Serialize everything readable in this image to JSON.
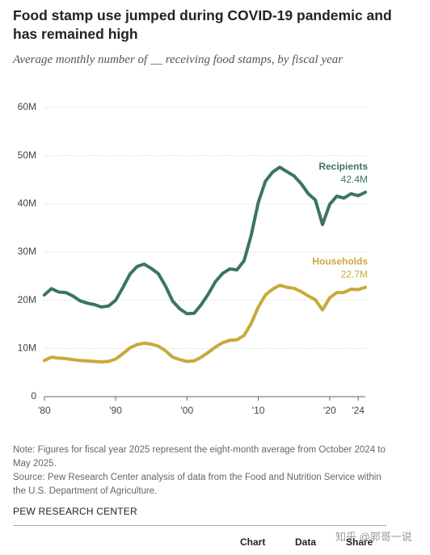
{
  "chart_data": {
    "type": "line",
    "title": "Food stamp use jumped during COVID-19 pandemic and has remained high",
    "subtitle": "Average monthly number of __ receiving food stamps, by fiscal year",
    "x": [
      1980,
      1981,
      1982,
      1983,
      1984,
      1985,
      1986,
      1987,
      1988,
      1989,
      1990,
      1991,
      1992,
      1993,
      1994,
      1995,
      1996,
      1997,
      1998,
      1999,
      2000,
      2001,
      2002,
      2003,
      2004,
      2005,
      2006,
      2007,
      2008,
      2009,
      2010,
      2011,
      2012,
      2013,
      2014,
      2015,
      2016,
      2017,
      2018,
      2019,
      2020,
      2021,
      2022,
      2023,
      2024,
      2025
    ],
    "series": [
      {
        "name": "Recipients",
        "color": "#3b7562",
        "values": [
          21.1,
          22.4,
          21.7,
          21.6,
          20.9,
          19.9,
          19.4,
          19.1,
          18.6,
          18.8,
          20.0,
          22.6,
          25.4,
          27.0,
          27.5,
          26.6,
          25.5,
          22.9,
          19.8,
          18.2,
          17.2,
          17.3,
          19.1,
          21.3,
          23.9,
          25.6,
          26.5,
          26.3,
          28.2,
          33.5,
          40.3,
          44.7,
          46.6,
          47.6,
          46.7,
          45.8,
          44.2,
          42.1,
          40.8,
          35.7,
          39.9,
          41.6,
          41.2,
          42.1,
          41.7,
          42.4
        ],
        "value_labels": [
          null,
          null,
          null,
          null,
          null,
          null,
          null,
          null,
          null,
          null,
          null,
          null,
          null,
          null,
          null,
          null,
          null,
          null,
          null,
          null,
          null,
          null,
          null,
          null,
          null,
          null,
          null,
          null,
          null,
          null,
          null,
          null,
          null,
          null,
          null,
          null,
          null,
          null,
          null,
          null,
          null,
          null,
          null,
          null,
          null,
          "42.4M"
        ]
      },
      {
        "name": "Households",
        "color": "#c9a93c",
        "values": [
          7.5,
          8.2,
          8.0,
          7.9,
          7.7,
          7.5,
          7.4,
          7.3,
          7.2,
          7.3,
          7.8,
          8.9,
          10.1,
          10.8,
          11.1,
          10.9,
          10.5,
          9.5,
          8.2,
          7.7,
          7.3,
          7.4,
          8.2,
          9.2,
          10.3,
          11.2,
          11.7,
          11.8,
          12.7,
          15.2,
          18.6,
          21.1,
          22.3,
          23.1,
          22.7,
          22.5,
          21.8,
          20.9,
          20.1,
          18.0,
          20.5,
          21.6,
          21.6,
          22.3,
          22.2,
          22.7
        ],
        "value_labels": [
          null,
          null,
          null,
          null,
          null,
          null,
          null,
          null,
          null,
          null,
          null,
          null,
          null,
          null,
          null,
          null,
          null,
          null,
          null,
          null,
          null,
          null,
          null,
          null,
          null,
          null,
          null,
          null,
          null,
          null,
          null,
          null,
          null,
          null,
          null,
          null,
          null,
          null,
          null,
          null,
          null,
          null,
          null,
          null,
          null,
          "22.7M"
        ]
      }
    ],
    "xlim": [
      1979,
      2025
    ],
    "xticks": [
      {
        "value": 1980,
        "label": "'80"
      },
      {
        "value": 1990,
        "label": "'90"
      },
      {
        "value": 2000,
        "label": "'00"
      },
      {
        "value": 2010,
        "label": "'10"
      },
      {
        "value": 2020,
        "label": "'20"
      },
      {
        "value": 2024,
        "label": "'24"
      }
    ],
    "ylim": [
      0,
      60
    ],
    "yticks": [
      0,
      {
        "value": 10,
        "label": "10M"
      },
      {
        "value": 20,
        "label": "20M"
      },
      {
        "value": 30,
        "label": "30M"
      },
      {
        "value": 40,
        "label": "40M"
      },
      {
        "value": 50,
        "label": "50M"
      },
      {
        "value": 60,
        "label": "60M"
      }
    ],
    "grid": true
  },
  "notes": [
    "Note: Figures for fiscal year 2025 represent the eight-month average from October 2024 to May 2025.",
    "Source: Pew Research Center analysis of data from the Food and Nutrition Service within the U.S. Department of Agriculture."
  ],
  "footer": "PEW RESEARCH CENTER",
  "tabs": [
    "Chart",
    "Data",
    "Share"
  ],
  "watermark": "知乎 @郭哥一说"
}
